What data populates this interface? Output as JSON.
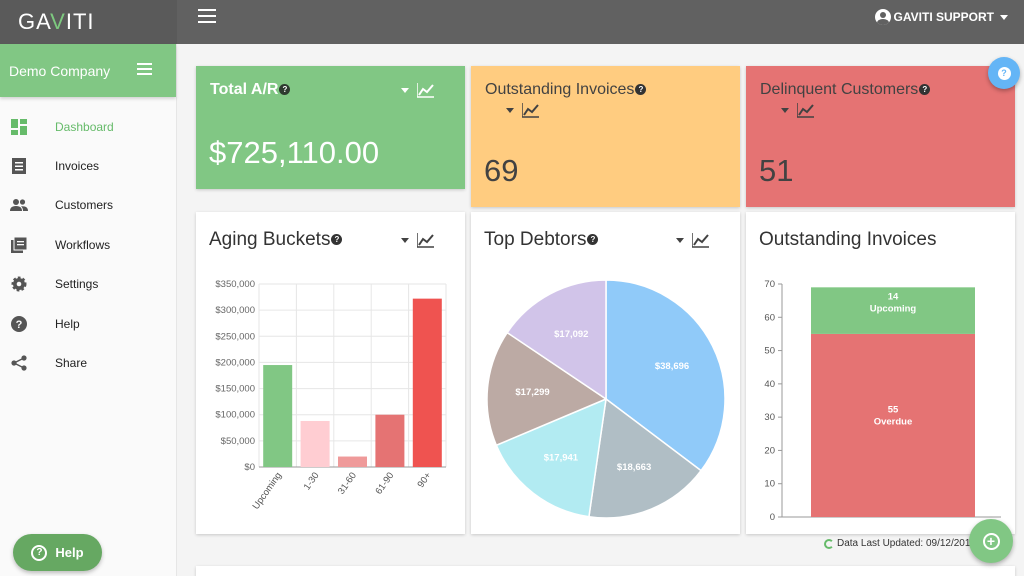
{
  "app": {
    "logo_text": [
      "GA",
      "V",
      "ITI"
    ],
    "user_name": "GAVITI SUPPORT"
  },
  "sidebar": {
    "company": "Demo Company",
    "items": [
      {
        "label": "Dashboard",
        "icon": "dashboard-icon",
        "active": true
      },
      {
        "label": "Invoices",
        "icon": "invoices-icon"
      },
      {
        "label": "Customers",
        "icon": "customers-icon"
      },
      {
        "label": "Workflows",
        "icon": "workflows-icon"
      },
      {
        "label": "Settings",
        "icon": "settings-icon"
      },
      {
        "label": "Help",
        "icon": "help-icon"
      },
      {
        "label": "Share",
        "icon": "share-icon"
      }
    ],
    "help_button": "Help"
  },
  "kpis": {
    "total_ar": {
      "title": "Total A/R",
      "value": "$725,110.00",
      "color": "#81c784"
    },
    "outstanding": {
      "title": "Outstanding Invoices",
      "value": "69",
      "color": "#ffcc80"
    },
    "delinquent": {
      "title": "Delinquent Customers",
      "value": "51",
      "color": "#e57373"
    }
  },
  "cards": {
    "aging_title": "Aging Buckets",
    "debtors_title": "Top Debtors",
    "outinv_title": "Outstanding Invoices"
  },
  "footer": {
    "last_updated": "Data Last Updated: 09/12/201"
  },
  "chart_data": [
    {
      "type": "bar",
      "title": "Aging Buckets",
      "categories": [
        "Upcoming",
        "1-30",
        "31-60",
        "61-90",
        "90+"
      ],
      "values": [
        195000,
        88000,
        20000,
        100000,
        322000
      ],
      "colors": [
        "#81c784",
        "#ffcdd2",
        "#ef9a9a",
        "#e57373",
        "#ef5350"
      ],
      "ylim": [
        0,
        350000
      ],
      "yticks": [
        "$0",
        "$50,000",
        "$100,000",
        "$150,000",
        "$200,000",
        "$250,000",
        "$300,000",
        "$350,000"
      ],
      "grid": true
    },
    {
      "type": "pie",
      "title": "Top Debtors",
      "labels": [
        "$38,696",
        "$18,663",
        "$17,941",
        "$17,299",
        "$17,092"
      ],
      "values": [
        38696,
        18663,
        17941,
        17299,
        17092
      ],
      "colors": [
        "#90caf9",
        "#b0bec5",
        "#b2ebf2",
        "#bcaaa4",
        "#d1c4e9"
      ]
    },
    {
      "type": "bar",
      "title": "Outstanding Invoices",
      "stacked": true,
      "series": [
        {
          "name": "Overdue",
          "value": 55,
          "label": "55",
          "color": "#e57373"
        },
        {
          "name": "Upcoming",
          "value": 14,
          "label": "14",
          "color": "#81c784"
        }
      ],
      "ylim": [
        0,
        70
      ],
      "yticks": [
        "0",
        "10",
        "20",
        "30",
        "40",
        "50",
        "60",
        "70"
      ]
    }
  ]
}
